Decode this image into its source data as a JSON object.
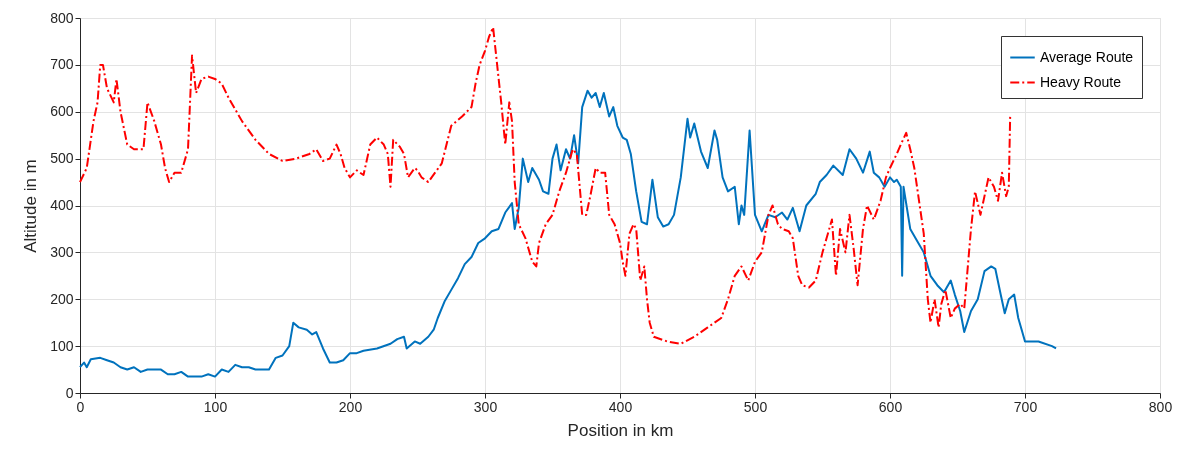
{
  "chart_data": {
    "type": "line",
    "xlabel": "Position in km",
    "ylabel": "Altitude in m",
    "xlim": [
      0,
      800
    ],
    "xticks": [
      0,
      100,
      200,
      300,
      400,
      500,
      600,
      700,
      800
    ],
    "ylim": [
      0,
      800
    ],
    "yticks": [
      0,
      100,
      200,
      300,
      400,
      500,
      600,
      700,
      800
    ],
    "grid": true,
    "legend": "top right",
    "series": [
      {
        "name": "Average Route",
        "color": "#0072bd",
        "line_style": "solid",
        "x": [
          0,
          3,
          5,
          8,
          15,
          20,
          25,
          30,
          35,
          40,
          45,
          50,
          60,
          65,
          70,
          75,
          80,
          90,
          95,
          100,
          105,
          110,
          115,
          120,
          125,
          130,
          140,
          145,
          150,
          155,
          158,
          162,
          168,
          172,
          175,
          180,
          185,
          190,
          195,
          200,
          205,
          210,
          220,
          230,
          235,
          240,
          242,
          248,
          252,
          258,
          262,
          265,
          270,
          275,
          280,
          285,
          290,
          295,
          300,
          305,
          310,
          315,
          320,
          322,
          325,
          328,
          332,
          335,
          340,
          343,
          347,
          350,
          353,
          356,
          360,
          363,
          366,
          369,
          372,
          376,
          379,
          382,
          385,
          388,
          392,
          395,
          398,
          402,
          405,
          408,
          412,
          416,
          420,
          424,
          428,
          432,
          436,
          440,
          445,
          450,
          452,
          455,
          460,
          465,
          470,
          472,
          476,
          480,
          485,
          488,
          490,
          492,
          496,
          500,
          505,
          510,
          515,
          520,
          524,
          528,
          533,
          538,
          545,
          548,
          553,
          558,
          565,
          570,
          575,
          580,
          585,
          588,
          592,
          596,
          600,
          603,
          605,
          608,
          609,
          610,
          615,
          620,
          625,
          630,
          635,
          640,
          645,
          648,
          652,
          655,
          660,
          665,
          670,
          675,
          678,
          682,
          685,
          688,
          692,
          695,
          698,
          700,
          710,
          720,
          723
        ],
        "values": [
          55,
          65,
          55,
          72,
          75,
          70,
          65,
          55,
          50,
          55,
          45,
          50,
          50,
          40,
          40,
          45,
          35,
          35,
          40,
          35,
          50,
          45,
          60,
          55,
          55,
          50,
          50,
          75,
          80,
          100,
          150,
          140,
          135,
          125,
          130,
          95,
          65,
          65,
          70,
          85,
          85,
          90,
          95,
          105,
          115,
          120,
          95,
          110,
          105,
          120,
          135,
          160,
          195,
          220,
          245,
          275,
          290,
          320,
          330,
          345,
          350,
          385,
          405,
          350,
          395,
          500,
          450,
          480,
          455,
          430,
          425,
          500,
          530,
          475,
          520,
          500,
          550,
          490,
          610,
          645,
          630,
          640,
          610,
          640,
          590,
          610,
          570,
          545,
          540,
          510,
          430,
          365,
          360,
          455,
          375,
          355,
          360,
          380,
          460,
          585,
          545,
          575,
          515,
          480,
          560,
          540,
          460,
          430,
          440,
          360,
          400,
          380,
          560,
          380,
          345,
          380,
          375,
          385,
          370,
          395,
          345,
          400,
          425,
          450,
          465,
          485,
          465,
          520,
          500,
          470,
          515,
          470,
          460,
          440,
          460,
          450,
          455,
          440,
          250,
          440,
          350,
          325,
          300,
          250,
          230,
          215,
          240,
          210,
          175,
          130,
          175,
          200,
          260,
          270,
          265,
          210,
          170,
          200,
          210,
          160,
          130,
          110,
          110,
          100,
          95
        ]
      },
      {
        "name": "Heavy Route",
        "color": "#ff0000",
        "line_style": "dashed",
        "x": [
          0,
          5,
          10,
          13,
          15,
          17,
          20,
          25,
          27,
          30,
          35,
          40,
          47,
          50,
          55,
          60,
          63,
          66,
          70,
          75,
          80,
          83,
          86,
          90,
          95,
          100,
          105,
          110,
          120,
          130,
          140,
          150,
          160,
          170,
          175,
          180,
          185,
          190,
          193,
          196,
          200,
          205,
          210,
          215,
          220,
          225,
          228,
          230,
          232,
          237,
          240,
          243,
          248,
          250,
          253,
          258,
          263,
          268,
          275,
          283,
          290,
          293,
          296,
          300,
          303,
          306,
          309,
          312,
          315,
          318,
          320,
          322,
          325,
          330,
          335,
          338,
          340,
          345,
          350,
          355,
          360,
          365,
          368,
          372,
          375,
          378,
          382,
          385,
          389,
          392,
          396,
          400,
          402,
          404,
          407,
          410,
          412,
          415,
          418,
          420,
          422,
          425,
          435,
          445,
          455,
          465,
          475,
          480,
          485,
          490,
          495,
          500,
          505,
          510,
          513,
          517,
          520,
          525,
          528,
          532,
          535,
          540,
          545,
          550,
          553,
          557,
          560,
          563,
          567,
          570,
          573,
          576,
          580,
          583,
          588,
          593,
          597,
          600,
          605,
          608,
          612,
          615,
          618,
          622,
          625,
          628,
          630,
          633,
          636,
          638,
          641,
          645,
          648,
          652,
          655,
          660,
          663,
          667,
          670,
          673,
          677,
          680,
          683,
          686,
          688,
          689
        ],
        "values": [
          450,
          480,
          580,
          620,
          700,
          700,
          650,
          620,
          670,
          600,
          530,
          520,
          520,
          620,
          580,
          530,
          480,
          450,
          470,
          470,
          520,
          720,
          640,
          670,
          675,
          670,
          660,
          630,
          580,
          540,
          510,
          495,
          500,
          510,
          520,
          495,
          500,
          530,
          510,
          480,
          460,
          475,
          465,
          530,
          545,
          530,
          510,
          440,
          540,
          525,
          510,
          460,
          480,
          475,
          460,
          450,
          470,
          490,
          570,
          590,
          610,
          660,
          700,
          730,
          760,
          780,
          700,
          620,
          530,
          620,
          580,
          450,
          360,
          330,
          280,
          270,
          320,
          360,
          380,
          430,
          470,
          520,
          510,
          380,
          380,
          420,
          480,
          470,
          470,
          380,
          360,
          320,
          280,
          250,
          340,
          360,
          350,
          240,
          270,
          200,
          150,
          120,
          110,
          105,
          120,
          140,
          160,
          200,
          250,
          270,
          240,
          280,
          300,
          380,
          400,
          360,
          350,
          345,
          330,
          250,
          230,
          225,
          240,
          300,
          330,
          370,
          250,
          350,
          300,
          380,
          310,
          230,
          350,
          400,
          370,
          410,
          460,
          480,
          510,
          530,
          555,
          520,
          480,
          400,
          340,
          200,
          150,
          200,
          140,
          190,
          220,
          160,
          180,
          190,
          180,
          350,
          430,
          380,
          420,
          460,
          440,
          410,
          470,
          420,
          440,
          590
        ]
      }
    ]
  }
}
